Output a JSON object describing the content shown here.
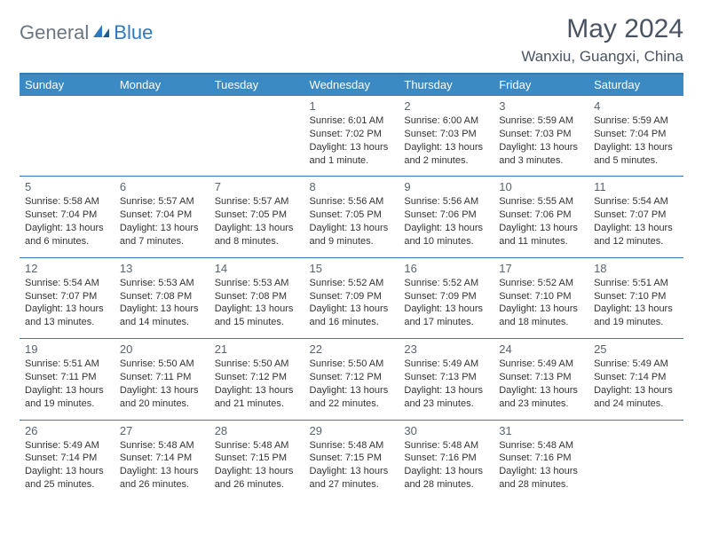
{
  "logo": {
    "general": "General",
    "blue": "Blue"
  },
  "title": "May 2024",
  "location": "Wanxiu, Guangxi, China",
  "colors": {
    "header_bg": "#3b8ac4",
    "header_border": "#2f7abf",
    "text_gray": "#4a5460",
    "logo_gray": "#6b7680",
    "logo_blue": "#2f7abf"
  },
  "dayHeaders": [
    "Sunday",
    "Monday",
    "Tuesday",
    "Wednesday",
    "Thursday",
    "Friday",
    "Saturday"
  ],
  "weeks": [
    [
      null,
      null,
      null,
      {
        "num": "1",
        "sunrise": "Sunrise: 6:01 AM",
        "sunset": "Sunset: 7:02 PM",
        "daylight": "Daylight: 13 hours and 1 minute."
      },
      {
        "num": "2",
        "sunrise": "Sunrise: 6:00 AM",
        "sunset": "Sunset: 7:03 PM",
        "daylight": "Daylight: 13 hours and 2 minutes."
      },
      {
        "num": "3",
        "sunrise": "Sunrise: 5:59 AM",
        "sunset": "Sunset: 7:03 PM",
        "daylight": "Daylight: 13 hours and 3 minutes."
      },
      {
        "num": "4",
        "sunrise": "Sunrise: 5:59 AM",
        "sunset": "Sunset: 7:04 PM",
        "daylight": "Daylight: 13 hours and 5 minutes."
      }
    ],
    [
      {
        "num": "5",
        "sunrise": "Sunrise: 5:58 AM",
        "sunset": "Sunset: 7:04 PM",
        "daylight": "Daylight: 13 hours and 6 minutes."
      },
      {
        "num": "6",
        "sunrise": "Sunrise: 5:57 AM",
        "sunset": "Sunset: 7:04 PM",
        "daylight": "Daylight: 13 hours and 7 minutes."
      },
      {
        "num": "7",
        "sunrise": "Sunrise: 5:57 AM",
        "sunset": "Sunset: 7:05 PM",
        "daylight": "Daylight: 13 hours and 8 minutes."
      },
      {
        "num": "8",
        "sunrise": "Sunrise: 5:56 AM",
        "sunset": "Sunset: 7:05 PM",
        "daylight": "Daylight: 13 hours and 9 minutes."
      },
      {
        "num": "9",
        "sunrise": "Sunrise: 5:56 AM",
        "sunset": "Sunset: 7:06 PM",
        "daylight": "Daylight: 13 hours and 10 minutes."
      },
      {
        "num": "10",
        "sunrise": "Sunrise: 5:55 AM",
        "sunset": "Sunset: 7:06 PM",
        "daylight": "Daylight: 13 hours and 11 minutes."
      },
      {
        "num": "11",
        "sunrise": "Sunrise: 5:54 AM",
        "sunset": "Sunset: 7:07 PM",
        "daylight": "Daylight: 13 hours and 12 minutes."
      }
    ],
    [
      {
        "num": "12",
        "sunrise": "Sunrise: 5:54 AM",
        "sunset": "Sunset: 7:07 PM",
        "daylight": "Daylight: 13 hours and 13 minutes."
      },
      {
        "num": "13",
        "sunrise": "Sunrise: 5:53 AM",
        "sunset": "Sunset: 7:08 PM",
        "daylight": "Daylight: 13 hours and 14 minutes."
      },
      {
        "num": "14",
        "sunrise": "Sunrise: 5:53 AM",
        "sunset": "Sunset: 7:08 PM",
        "daylight": "Daylight: 13 hours and 15 minutes."
      },
      {
        "num": "15",
        "sunrise": "Sunrise: 5:52 AM",
        "sunset": "Sunset: 7:09 PM",
        "daylight": "Daylight: 13 hours and 16 minutes."
      },
      {
        "num": "16",
        "sunrise": "Sunrise: 5:52 AM",
        "sunset": "Sunset: 7:09 PM",
        "daylight": "Daylight: 13 hours and 17 minutes."
      },
      {
        "num": "17",
        "sunrise": "Sunrise: 5:52 AM",
        "sunset": "Sunset: 7:10 PM",
        "daylight": "Daylight: 13 hours and 18 minutes."
      },
      {
        "num": "18",
        "sunrise": "Sunrise: 5:51 AM",
        "sunset": "Sunset: 7:10 PM",
        "daylight": "Daylight: 13 hours and 19 minutes."
      }
    ],
    [
      {
        "num": "19",
        "sunrise": "Sunrise: 5:51 AM",
        "sunset": "Sunset: 7:11 PM",
        "daylight": "Daylight: 13 hours and 19 minutes."
      },
      {
        "num": "20",
        "sunrise": "Sunrise: 5:50 AM",
        "sunset": "Sunset: 7:11 PM",
        "daylight": "Daylight: 13 hours and 20 minutes."
      },
      {
        "num": "21",
        "sunrise": "Sunrise: 5:50 AM",
        "sunset": "Sunset: 7:12 PM",
        "daylight": "Daylight: 13 hours and 21 minutes."
      },
      {
        "num": "22",
        "sunrise": "Sunrise: 5:50 AM",
        "sunset": "Sunset: 7:12 PM",
        "daylight": "Daylight: 13 hours and 22 minutes."
      },
      {
        "num": "23",
        "sunrise": "Sunrise: 5:49 AM",
        "sunset": "Sunset: 7:13 PM",
        "daylight": "Daylight: 13 hours and 23 minutes."
      },
      {
        "num": "24",
        "sunrise": "Sunrise: 5:49 AM",
        "sunset": "Sunset: 7:13 PM",
        "daylight": "Daylight: 13 hours and 23 minutes."
      },
      {
        "num": "25",
        "sunrise": "Sunrise: 5:49 AM",
        "sunset": "Sunset: 7:14 PM",
        "daylight": "Daylight: 13 hours and 24 minutes."
      }
    ],
    [
      {
        "num": "26",
        "sunrise": "Sunrise: 5:49 AM",
        "sunset": "Sunset: 7:14 PM",
        "daylight": "Daylight: 13 hours and 25 minutes."
      },
      {
        "num": "27",
        "sunrise": "Sunrise: 5:48 AM",
        "sunset": "Sunset: 7:14 PM",
        "daylight": "Daylight: 13 hours and 26 minutes."
      },
      {
        "num": "28",
        "sunrise": "Sunrise: 5:48 AM",
        "sunset": "Sunset: 7:15 PM",
        "daylight": "Daylight: 13 hours and 26 minutes."
      },
      {
        "num": "29",
        "sunrise": "Sunrise: 5:48 AM",
        "sunset": "Sunset: 7:15 PM",
        "daylight": "Daylight: 13 hours and 27 minutes."
      },
      {
        "num": "30",
        "sunrise": "Sunrise: 5:48 AM",
        "sunset": "Sunset: 7:16 PM",
        "daylight": "Daylight: 13 hours and 28 minutes."
      },
      {
        "num": "31",
        "sunrise": "Sunrise: 5:48 AM",
        "sunset": "Sunset: 7:16 PM",
        "daylight": "Daylight: 13 hours and 28 minutes."
      },
      null
    ]
  ]
}
